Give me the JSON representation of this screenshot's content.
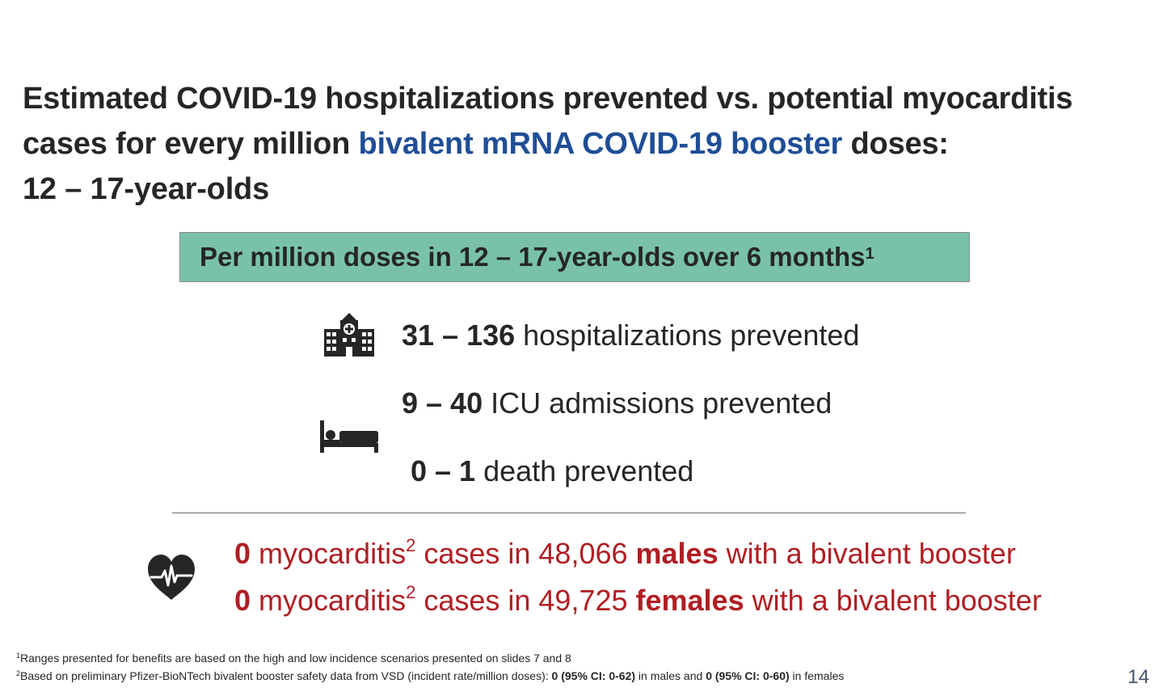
{
  "title": {
    "part1": "Estimated COVID-19 hospitalizations prevented vs. potential myocarditis cases for every million ",
    "highlight": "bivalent mRNA COVID-19 booster",
    "part2": " doses:",
    "line3": "12 – 17-year-olds"
  },
  "banner": {
    "text": "Per million doses in 12 – 17-year-olds over 6 months",
    "sup": "1"
  },
  "stats": [
    {
      "value": "31 – 136",
      "text": " hospitalizations prevented",
      "icon": "hospital-icon"
    },
    {
      "value": "9 – 40",
      "text": " ICU admissions prevented",
      "icon": "bed-icon"
    },
    {
      "value": "0 – 1",
      "text": " death prevented"
    }
  ],
  "myocarditis": {
    "icon": "heart-rate-icon",
    "rows": [
      {
        "count": "0",
        "word": " myocarditis",
        "sup": "2",
        "mid": " cases in 48,066 ",
        "group": "males",
        "tail": " with a bivalent booster"
      },
      {
        "count": "0",
        "word": " myocarditis",
        "sup": "2",
        "mid": " cases in 49,725 ",
        "group": "females",
        "tail": " with a bivalent booster"
      }
    ]
  },
  "footnotes": {
    "fn1_sup": "1",
    "fn1": "Ranges presented for benefits are based on the high and low incidence scenarios presented on slides 7 and 8",
    "fn2_sup": "2",
    "fn2_a": "Based on preliminary Pfizer-BioNTech bivalent booster safety data from VSD (incident rate/million doses): ",
    "fn2_b": "0 (95% CI: 0-62)",
    "fn2_c": " in males and ",
    "fn2_d": "0 (95% CI: 0-60)",
    "fn2_e": " in females"
  },
  "page_number": "14",
  "colors": {
    "title_highlight": "#1f4e96",
    "banner_bg": "#79c2a9",
    "myocarditis_text": "#b01e23",
    "page_number": "#44546a"
  }
}
